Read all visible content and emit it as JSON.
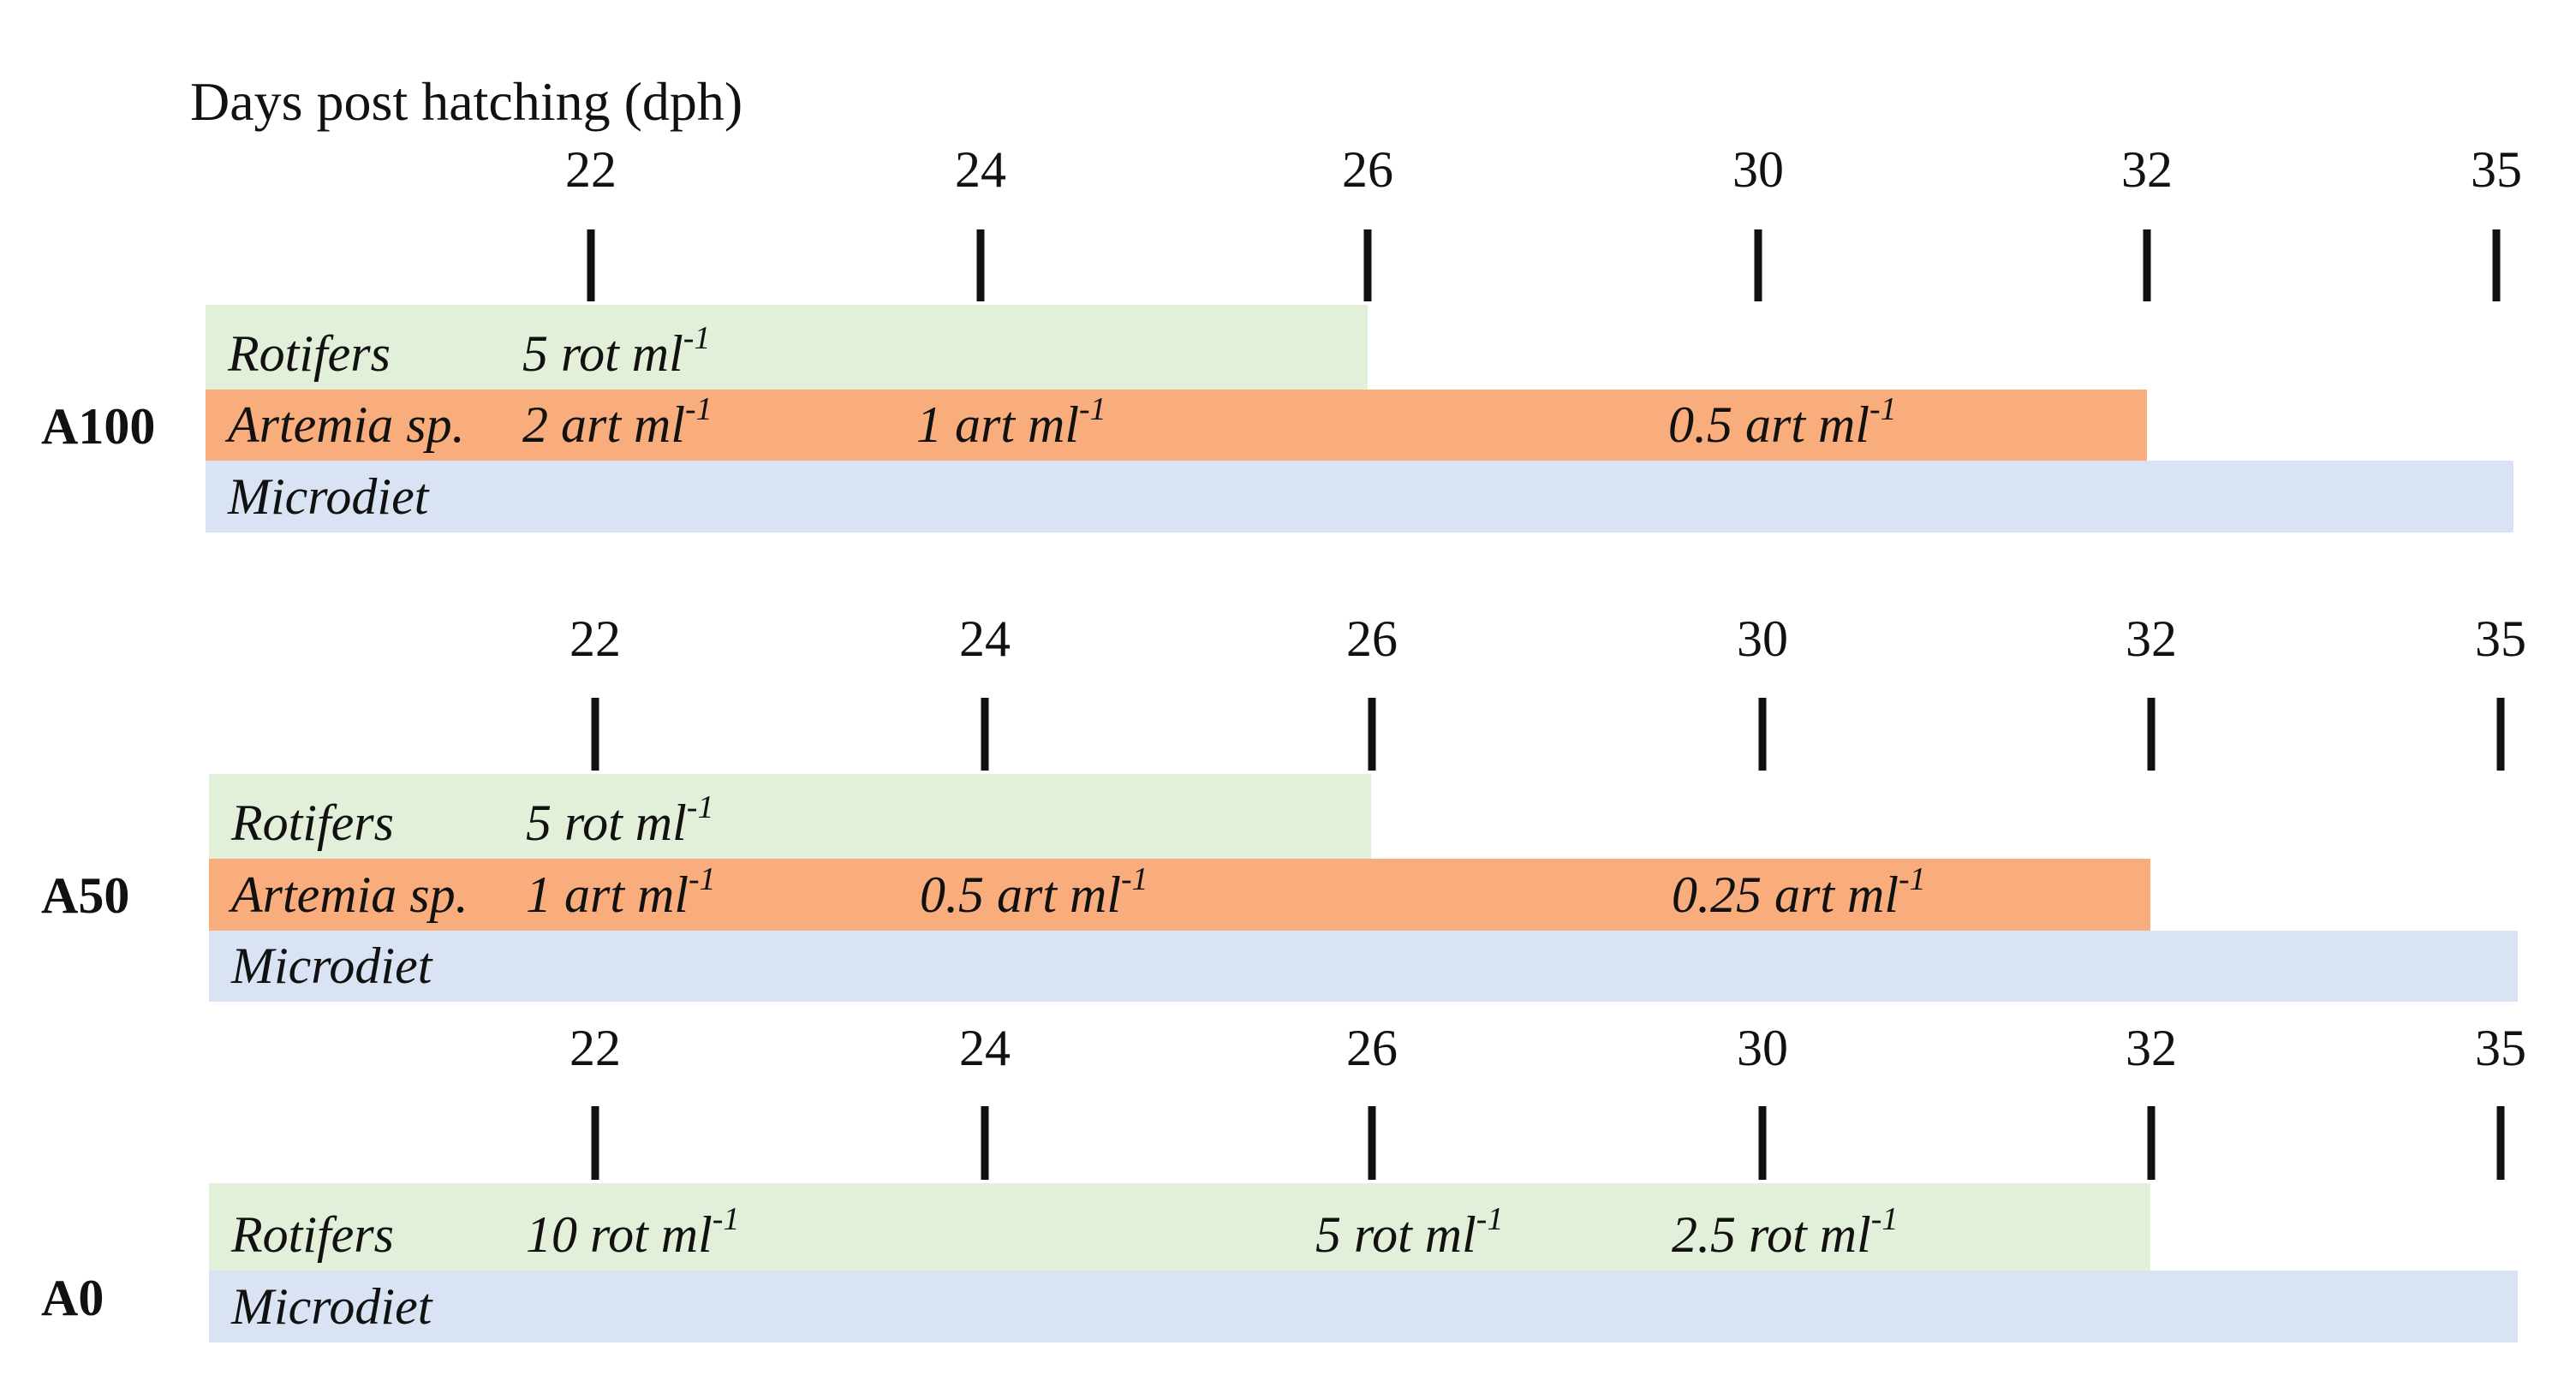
{
  "axis_title": "Days post hatching (dph)",
  "colors": {
    "rotifers": "#e2efd9",
    "artemia": "#f9ad7c",
    "microdiet": "#dae3f3",
    "tick": "#111111"
  },
  "panels": [
    {
      "group": "A100",
      "ticks": [
        "22",
        "24",
        "26",
        "30",
        "32",
        "35"
      ],
      "bars": [
        {
          "name": "Rotifers",
          "type": "rotifers",
          "end_tick": "26",
          "doses": [
            {
              "value": "5 rot ml",
              "sup": "-1",
              "start_tick": "22"
            }
          ]
        },
        {
          "name": "Artemia sp.",
          "type": "artemia",
          "end_tick": "32",
          "doses": [
            {
              "value": "2 art ml",
              "sup": "-1",
              "start_tick": "22"
            },
            {
              "value": "1 art ml",
              "sup": "-1",
              "start_tick": "24"
            },
            {
              "value": "0.5 art ml",
              "sup": "-1",
              "start_tick": "30"
            }
          ]
        },
        {
          "name": "Microdiet",
          "type": "microdiet",
          "end_tick": "35",
          "doses": []
        }
      ]
    },
    {
      "group": "A50",
      "ticks": [
        "22",
        "24",
        "26",
        "30",
        "32",
        "35"
      ],
      "bars": [
        {
          "name": "Rotifers",
          "type": "rotifers",
          "end_tick": "26",
          "doses": [
            {
              "value": "5 rot ml",
              "sup": "-1",
              "start_tick": "22"
            }
          ]
        },
        {
          "name": "Artemia sp.",
          "type": "artemia",
          "end_tick": "32",
          "doses": [
            {
              "value": "1 art ml",
              "sup": "-1",
              "start_tick": "22"
            },
            {
              "value": "0.5 art ml",
              "sup": "-1",
              "start_tick": "24"
            },
            {
              "value": "0.25 art ml",
              "sup": "-1",
              "start_tick": "30"
            }
          ]
        },
        {
          "name": "Microdiet",
          "type": "microdiet",
          "end_tick": "35",
          "doses": []
        }
      ]
    },
    {
      "group": "A0",
      "ticks": [
        "22",
        "24",
        "26",
        "30",
        "32",
        "35"
      ],
      "bars": [
        {
          "name": "Rotifers",
          "type": "rotifers",
          "end_tick": "32",
          "doses": [
            {
              "value": "10 rot ml",
              "sup": "-1",
              "start_tick": "22"
            },
            {
              "value": "5 rot ml",
              "sup": "-1",
              "start_tick": "26"
            },
            {
              "value": "2.5 rot ml",
              "sup": "-1",
              "start_tick": "30"
            }
          ]
        },
        {
          "name": "Microdiet",
          "type": "microdiet",
          "end_tick": "35",
          "doses": []
        }
      ]
    }
  ]
}
